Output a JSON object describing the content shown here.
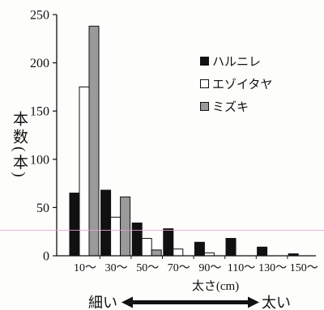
{
  "chart_data": {
    "type": "bar",
    "categories": [
      "10〜",
      "30〜",
      "50〜",
      "70〜",
      "90〜",
      "110〜",
      "130〜",
      "150〜"
    ],
    "series": [
      {
        "name": "ハルニレ",
        "color": "#111111",
        "values": [
          65,
          68,
          34,
          28,
          14,
          18,
          9,
          2
        ]
      },
      {
        "name": "エゾイタヤ",
        "color": "#ffffff",
        "values": [
          175,
          40,
          18,
          7,
          3,
          0,
          0,
          0
        ]
      },
      {
        "name": "ミズキ",
        "color": "#9a9a9a",
        "values": [
          238,
          61,
          6,
          0,
          0,
          0,
          0,
          0
        ]
      }
    ],
    "xlabel": "太さ(cm)",
    "ylabel": "本数(本)",
    "ylim": [
      0,
      250
    ],
    "yticks": [
      0,
      50,
      100,
      150,
      200,
      250
    ],
    "legend": "top-right",
    "grid": false
  },
  "direction": {
    "left": "細い",
    "right": "太い"
  }
}
